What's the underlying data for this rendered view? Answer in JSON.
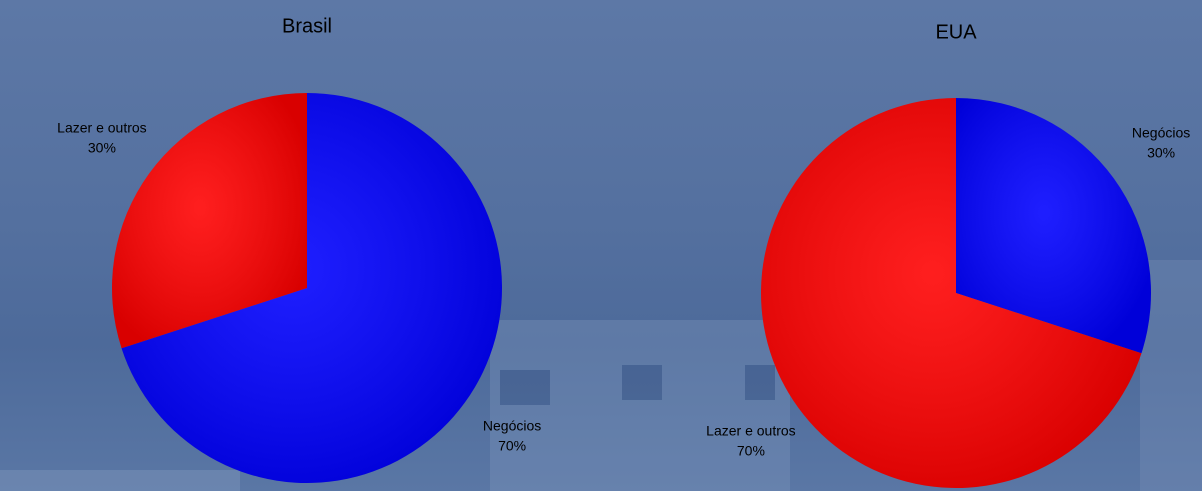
{
  "chart_data": [
    {
      "type": "pie",
      "title": "Brasil",
      "categories": [
        "Negócios",
        "Lazer e outros"
      ],
      "values": [
        70,
        30
      ],
      "value_labels": [
        "70%",
        "30%"
      ],
      "colors": [
        "#0000ff",
        "#ff0000"
      ]
    },
    {
      "type": "pie",
      "title": "EUA",
      "categories": [
        "Negócios",
        "Lazer e outros"
      ],
      "values": [
        30,
        70
      ],
      "value_labels": [
        "30%",
        "70%"
      ],
      "colors": [
        "#0000ff",
        "#ff0000"
      ]
    }
  ]
}
